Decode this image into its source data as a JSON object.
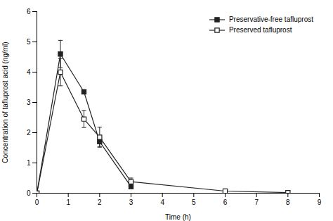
{
  "chart_data": {
    "type": "line",
    "xlabel": "Time (h)",
    "ylabel": "Concentration of tafluprost acid (ng/ml)",
    "xlim": [
      0,
      9
    ],
    "ylim": [
      0,
      6
    ],
    "xticks": [
      0,
      1,
      2,
      3,
      4,
      5,
      6,
      7,
      8,
      9
    ],
    "yticks": [
      0,
      1,
      2,
      3,
      4,
      5,
      6
    ],
    "legend": "upper right",
    "series": [
      {
        "name": "Preservative-free tafluprost",
        "color": "#222222",
        "marker": "square",
        "line_style": "solid",
        "x": [
          0,
          0.75,
          1.5,
          2.0,
          3.0
        ],
        "values": [
          0.0,
          4.6,
          3.35,
          1.7,
          0.22
        ],
        "yerr": [
          0,
          0.45,
          0.0,
          0.17,
          0.07
        ]
      },
      {
        "name": "Preserved tafluprost",
        "color": "#222222",
        "marker": "square_open",
        "line_style": "solid",
        "x": [
          0,
          0.75,
          1.5,
          2.0,
          3.0,
          6.0,
          8.0
        ],
        "values": [
          0.0,
          4.0,
          2.45,
          1.85,
          0.38,
          0.07,
          0.02
        ],
        "yerr": [
          0,
          0.45,
          0.28,
          0.33,
          0.12,
          0.0,
          0.0
        ]
      }
    ]
  }
}
